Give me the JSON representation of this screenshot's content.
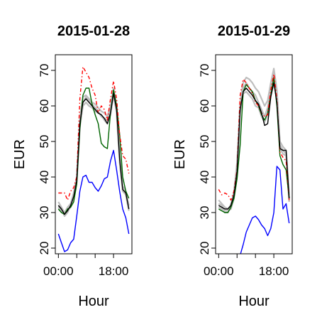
{
  "chart_data": [
    {
      "type": "line",
      "title": "2015-01-28",
      "xlabel": "Hour",
      "ylabel": "EUR",
      "xlim": [
        0,
        23
      ],
      "ylim": [
        20,
        70
      ],
      "xticks": [
        0,
        18
      ],
      "xtick_labels": [
        "00:00",
        "18:00"
      ],
      "yticks": [
        20,
        30,
        40,
        50,
        60,
        70
      ],
      "ytick_labels": [
        "20",
        "30",
        "40",
        "50",
        "60",
        "70"
      ],
      "grid": false,
      "x": [
        0,
        1,
        2,
        3,
        4,
        5,
        6,
        7,
        8,
        9,
        10,
        11,
        12,
        13,
        14,
        15,
        16,
        17,
        18,
        19,
        20,
        21,
        22,
        23
      ],
      "colors": {
        "band": "#bebebe",
        "black": "#000000",
        "red": "#ff0000",
        "green": "#006400",
        "blue": "#0000ff"
      },
      "band": [
        [
          31.5,
          30.5,
          29.5,
          30.5,
          31.5,
          34.5,
          38.5,
          54.0,
          60.0,
          61.0,
          60.0,
          59.5,
          58.5,
          58.0,
          57.5,
          56.0,
          55.0,
          57.5,
          63.0,
          58.0,
          44.0,
          36.0,
          35.0,
          31.0
        ],
        [
          33.0,
          31.5,
          30.0,
          31.5,
          32.5,
          35.5,
          40.0,
          56.5,
          62.5,
          63.0,
          62.0,
          61.0,
          60.5,
          59.5,
          58.5,
          58.0,
          57.0,
          60.0,
          65.0,
          60.0,
          46.0,
          37.5,
          36.0,
          32.0
        ],
        [
          32.0,
          31.0,
          29.0,
          30.0,
          32.0,
          34.0,
          39.5,
          55.5,
          61.0,
          62.5,
          61.5,
          60.5,
          59.5,
          58.5,
          57.0,
          56.5,
          56.0,
          59.0,
          64.0,
          58.5,
          45.0,
          36.5,
          35.0,
          30.5
        ]
      ],
      "series": [
        {
          "color": "black",
          "style": "solid",
          "values": [
            32.0,
            31.0,
            29.5,
            30.5,
            32.0,
            34.5,
            39.0,
            55.0,
            61.0,
            62.0,
            61.0,
            60.0,
            59.0,
            58.0,
            57.5,
            56.5,
            55.0,
            58.0,
            63.5,
            59.0,
            45.0,
            36.5,
            35.5,
            31.0
          ]
        },
        {
          "color": "red",
          "style": "dashed",
          "values": [
            35.5,
            35.5,
            35.5,
            33.5,
            36.0,
            37.0,
            40.0,
            62.0,
            71.0,
            69.5,
            68.0,
            65.0,
            63.0,
            58.0,
            60.0,
            59.0,
            56.0,
            62.0,
            67.0,
            62.0,
            52.0,
            46.0,
            45.0,
            41.0
          ]
        },
        {
          "color": "green",
          "style": "solid",
          "values": [
            31.0,
            30.0,
            29.5,
            31.0,
            31.5,
            33.0,
            38.0,
            53.5,
            63.0,
            65.0,
            65.0,
            60.5,
            57.5,
            55.0,
            49.5,
            48.5,
            48.0,
            58.0,
            64.5,
            60.0,
            52.0,
            40.0,
            36.0,
            34.0
          ]
        },
        {
          "color": "blue",
          "style": "solid",
          "values": [
            24.0,
            21.5,
            19.0,
            19.5,
            21.5,
            22.5,
            29.0,
            36.0,
            40.0,
            40.5,
            38.5,
            38.5,
            37.0,
            36.0,
            37.5,
            39.5,
            40.0,
            44.5,
            47.5,
            42.0,
            36.0,
            31.0,
            28.5,
            24.0
          ]
        }
      ]
    },
    {
      "type": "line",
      "title": "2015-01-29",
      "xlabel": "Hour",
      "ylabel": "EUR",
      "xlim": [
        0,
        23
      ],
      "ylim": [
        20,
        70
      ],
      "xticks": [
        0,
        18
      ],
      "xtick_labels": [
        "00:00",
        "18:00"
      ],
      "yticks": [
        20,
        30,
        40,
        50,
        60,
        70
      ],
      "ytick_labels": [
        "20",
        "30",
        "40",
        "50",
        "60",
        "70"
      ],
      "grid": false,
      "x": [
        0,
        1,
        2,
        3,
        4,
        5,
        6,
        7,
        8,
        9,
        10,
        11,
        12,
        13,
        14,
        15,
        16,
        17,
        18,
        19,
        20,
        21,
        22,
        23
      ],
      "colors": {
        "band": "#bebebe",
        "black": "#000000",
        "red": "#ff0000",
        "green": "#006400",
        "blue": "#0000ff"
      },
      "band": [
        [
          31.5,
          31.0,
          30.5,
          30.5,
          31.0,
          34.0,
          40.0,
          58.0,
          63.5,
          64.0,
          63.0,
          62.0,
          60.0,
          59.5,
          57.0,
          55.5,
          57.5,
          63.0,
          68.0,
          62.0,
          48.0,
          46.5,
          46.0,
          33.0
        ],
        [
          33.5,
          32.5,
          31.5,
          31.0,
          32.0,
          36.0,
          44.0,
          61.0,
          66.5,
          68.0,
          67.5,
          66.5,
          65.0,
          64.0,
          62.0,
          60.0,
          61.5,
          66.5,
          70.5,
          64.5,
          50.0,
          48.5,
          47.5,
          35.0
        ],
        [
          32.5,
          32.0,
          30.0,
          30.0,
          32.5,
          35.0,
          42.0,
          60.0,
          65.0,
          66.5,
          65.0,
          64.0,
          63.0,
          61.0,
          59.0,
          57.0,
          59.5,
          64.5,
          69.5,
          63.0,
          49.0,
          47.5,
          46.5,
          34.0
        ]
      ],
      "series": [
        {
          "color": "black",
          "style": "solid",
          "values": [
            32.0,
            31.5,
            31.0,
            31.0,
            32.0,
            35.0,
            41.5,
            59.0,
            64.0,
            65.0,
            64.0,
            63.0,
            61.5,
            60.5,
            58.0,
            54.5,
            55.0,
            62.5,
            66.5,
            61.0,
            48.0,
            47.5,
            47.5,
            34.0
          ]
        },
        {
          "color": "red",
          "style": "dashed",
          "values": [
            36.5,
            35.0,
            35.5,
            35.0,
            33.5,
            36.0,
            42.0,
            63.0,
            67.5,
            66.5,
            65.0,
            63.5,
            61.0,
            60.0,
            58.0,
            57.0,
            57.5,
            64.5,
            69.0,
            62.0,
            47.0,
            45.5,
            44.5,
            33.5
          ]
        },
        {
          "color": "green",
          "style": "solid",
          "values": [
            31.0,
            30.5,
            30.0,
            30.0,
            31.5,
            34.0,
            39.5,
            49.0,
            64.0,
            66.0,
            65.0,
            64.0,
            61.5,
            60.0,
            57.5,
            56.0,
            58.0,
            63.0,
            68.0,
            60.0,
            46.0,
            43.5,
            42.0,
            34.0
          ]
        },
        {
          "color": "blue",
          "style": "solid",
          "values": [
            null,
            null,
            null,
            null,
            null,
            null,
            null,
            18.0,
            21.0,
            24.5,
            26.5,
            28.5,
            29.0,
            28.0,
            26.5,
            25.5,
            23.5,
            25.5,
            30.0,
            43.0,
            42.0,
            31.0,
            32.5,
            27.0
          ]
        }
      ]
    }
  ]
}
